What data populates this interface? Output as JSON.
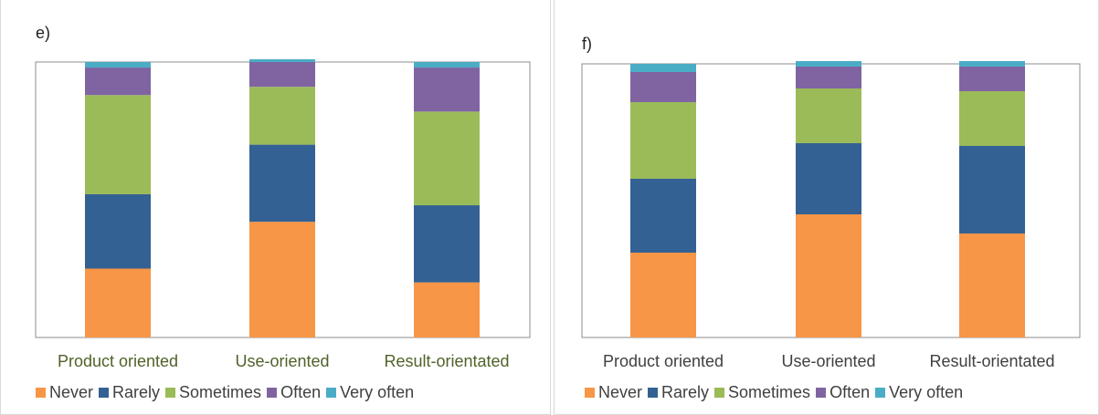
{
  "colors": {
    "never": "#F79646",
    "rarely": "#336193",
    "sometimes": "#9BBB59",
    "often": "#8064A2",
    "very_often": "#4BACC6",
    "category_label_e": "#4F6228",
    "category_label_f": "#404040"
  },
  "legend": [
    "Never",
    "Rarely",
    "Sometimes",
    "Often",
    "Very often"
  ],
  "chart_data": [
    {
      "type": "bar",
      "stacked": true,
      "percent": true,
      "panel_label": "e)",
      "categories": [
        "Product oriented",
        "Use-oriented",
        "Result-orientated"
      ],
      "ylim": [
        0,
        100
      ],
      "series": [
        {
          "name": "Never",
          "values": [
            25,
            42,
            20
          ]
        },
        {
          "name": "Rarely",
          "values": [
            27,
            28,
            28
          ]
        },
        {
          "name": "Sometimes",
          "values": [
            36,
            21,
            34
          ]
        },
        {
          "name": "Often",
          "values": [
            10,
            9,
            16
          ]
        },
        {
          "name": "Very often",
          "values": [
            2,
            1,
            2
          ]
        }
      ],
      "legend_position": "bottom"
    },
    {
      "type": "bar",
      "stacked": true,
      "percent": true,
      "panel_label": "f)",
      "categories": [
        "Product oriented",
        "Use-oriented",
        "Result-orientated"
      ],
      "ylim": [
        0,
        100
      ],
      "series": [
        {
          "name": "Never",
          "values": [
            31,
            45,
            38
          ]
        },
        {
          "name": "Rarely",
          "values": [
            27,
            26,
            32
          ]
        },
        {
          "name": "Sometimes",
          "values": [
            28,
            20,
            20
          ]
        },
        {
          "name": "Often",
          "values": [
            11,
            8,
            9
          ]
        },
        {
          "name": "Very often",
          "values": [
            3,
            2,
            2
          ]
        }
      ],
      "legend_position": "bottom"
    }
  ]
}
